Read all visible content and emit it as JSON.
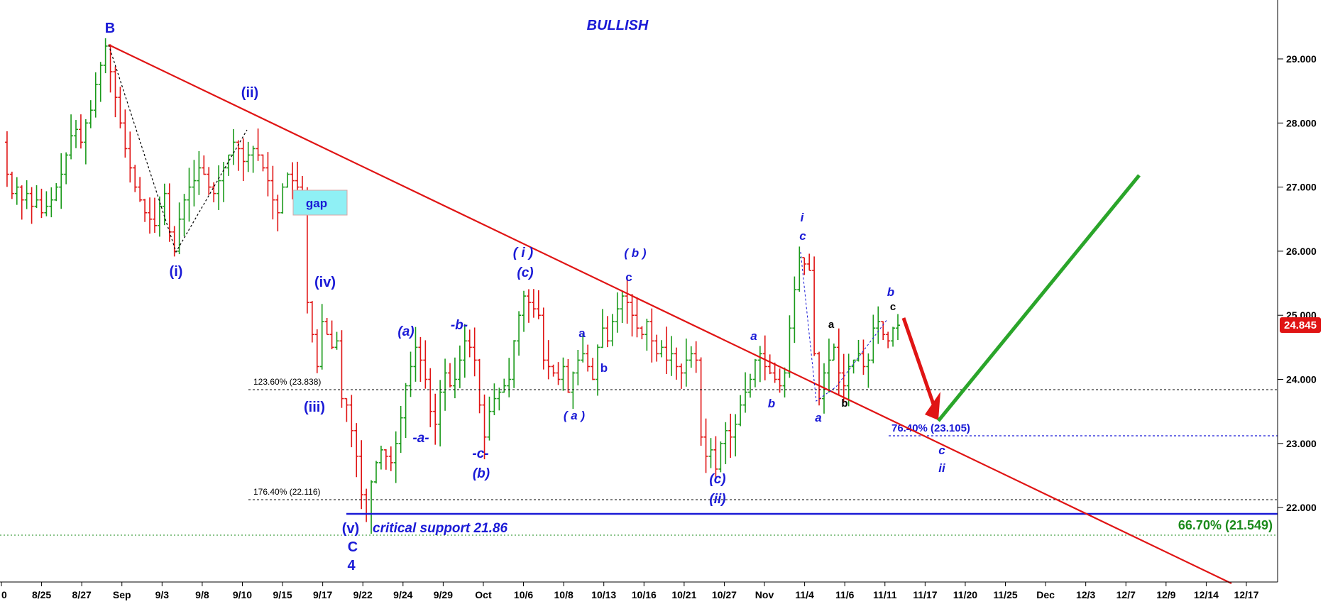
{
  "chart_data": {
    "type": "candlestick",
    "title": "BULLISH",
    "ylim": [
      21,
      29.8
    ],
    "yticks": [
      "29.000",
      "28.000",
      "27.000",
      "26.000",
      "25.000",
      "24.000",
      "23.000",
      "22.000"
    ],
    "yticks_values": [
      29,
      28,
      27,
      26,
      25,
      24,
      23,
      22
    ],
    "xticks": [
      "0",
      "8/25",
      "8/27",
      "Sep",
      "9/3",
      "9/8",
      "9/10",
      "9/15",
      "9/17",
      "9/22",
      "9/24",
      "9/29",
      "Oct",
      "10/6",
      "10/8",
      "10/13",
      "10/16",
      "10/21",
      "10/27",
      "Nov",
      "11/4",
      "11/6",
      "11/11",
      "11/17",
      "11/20",
      "11/25",
      "Dec",
      "12/3",
      "12/7",
      "12/9",
      "12/14",
      "12/17"
    ],
    "last_price": "24.845",
    "last_price_value": 24.845,
    "colors": {
      "up": "#1a9a1a",
      "down": "#e01414",
      "wave": "#1a1ad6",
      "trend": "#e01414",
      "projection": "#2aa52a",
      "support": "#1a1ad6",
      "fib_green": "#1a8a1a"
    },
    "price_path": [
      27.7,
      27.2,
      26.9,
      27.0,
      26.8,
      26.9,
      26.7,
      26.8,
      26.6,
      26.7,
      26.8,
      27.0,
      27.2,
      27.5,
      27.8,
      27.9,
      27.7,
      28.0,
      28.2,
      28.6,
      28.9,
      29.2,
      28.8,
      28.4,
      28.0,
      27.6,
      27.3,
      27.0,
      26.8,
      26.6,
      26.5,
      26.4,
      26.7,
      26.9,
      26.3,
      26.0,
      26.5,
      26.8,
      27.0,
      27.1,
      27.3,
      27.2,
      27.0,
      26.9,
      27.1,
      27.3,
      27.5,
      27.7,
      27.6,
      27.4,
      27.5,
      27.6,
      27.5,
      27.3,
      27.1,
      26.8,
      26.6,
      27.0,
      27.2,
      27.1,
      27.0,
      26.9,
      25.2,
      24.7,
      24.2,
      24.9,
      24.7,
      24.5,
      24.6,
      23.7,
      23.6,
      23.2,
      22.8,
      22.2,
      21.9,
      22.4,
      22.7,
      22.9,
      22.8,
      22.7,
      23.0,
      23.4,
      23.9,
      24.2,
      24.5,
      24.3,
      24.0,
      23.5,
      23.3,
      23.8,
      24.1,
      23.9,
      24.0,
      24.3,
      24.6,
      24.5,
      24.3,
      23.6,
      23.1,
      23.5,
      23.7,
      23.8,
      23.9,
      24.0,
      24.6,
      25.0,
      25.3,
      25.2,
      25.1,
      25.0,
      24.3,
      24.2,
      24.1,
      24.0,
      24.2,
      23.8,
      24.1,
      24.3,
      24.4,
      24.2,
      24.0,
      24.5,
      24.8,
      24.6,
      24.9,
      25.1,
      25.3,
      25.2,
      25.0,
      24.8,
      24.7,
      24.9,
      24.6,
      24.4,
      24.5,
      24.3,
      24.4,
      24.2,
      24.1,
      24.3,
      24.4,
      24.3,
      23.1,
      22.8,
      22.9,
      22.6,
      23.0,
      23.2,
      23.1,
      23.3,
      23.6,
      23.8,
      24.0,
      24.3,
      24.4,
      24.2,
      24.1,
      24.0,
      23.9,
      24.1,
      24.8,
      25.4,
      25.9,
      25.8,
      25.7,
      24.4,
      23.7,
      24.1,
      24.3,
      24.5,
      24.1,
      23.9,
      24.2,
      24.3,
      24.4,
      24.2,
      24.3,
      24.8,
      24.9,
      24.7,
      24.6,
      24.8,
      24.845
    ],
    "trendline": {
      "from": {
        "x": "Sep",
        "y": 29.2
      },
      "to": {
        "x": "12/17",
        "y": 21.0
      }
    },
    "projection": {
      "red_from": 24.95,
      "red_to": 23.3,
      "green_from": 23.3,
      "green_to": 27.15
    },
    "fib_levels": [
      {
        "label": "123.60% (23.838)",
        "value": 23.838
      },
      {
        "label": "176.40% (22.116)",
        "value": 22.116
      },
      {
        "label": "76.40% (23.105)",
        "value": 23.105
      },
      {
        "label": "66.70% (21.549)",
        "value": 21.549
      }
    ],
    "support": {
      "label": "critical support 21.86",
      "value": 21.86
    },
    "gap_label": "gap",
    "wave_labels": {
      "B": "B",
      "ii": "(ii)",
      "i": "(i)",
      "iv": "(iv)",
      "iii": "(iii)",
      "v": "(v)",
      "C": "C",
      "four": "4",
      "a1": "(a)",
      "a2": "-a-",
      "b1": "-b-",
      "c1": "-c-",
      "b2": "(b)",
      "i2": "( i )",
      "c2": "(c)",
      "a3": "a",
      "b3": "b",
      "a4": "( a )",
      "bparen": "( b )",
      "c3": "c",
      "c4": "(c)",
      "ii2": "(ii)",
      "a5": "a",
      "b5": "b",
      "i3": "i",
      "c5": "c",
      "a6": "a",
      "a7": "a",
      "b6": "b",
      "b7": "b",
      "c6": "c",
      "c7": "c",
      "ii3": "ii"
    }
  }
}
